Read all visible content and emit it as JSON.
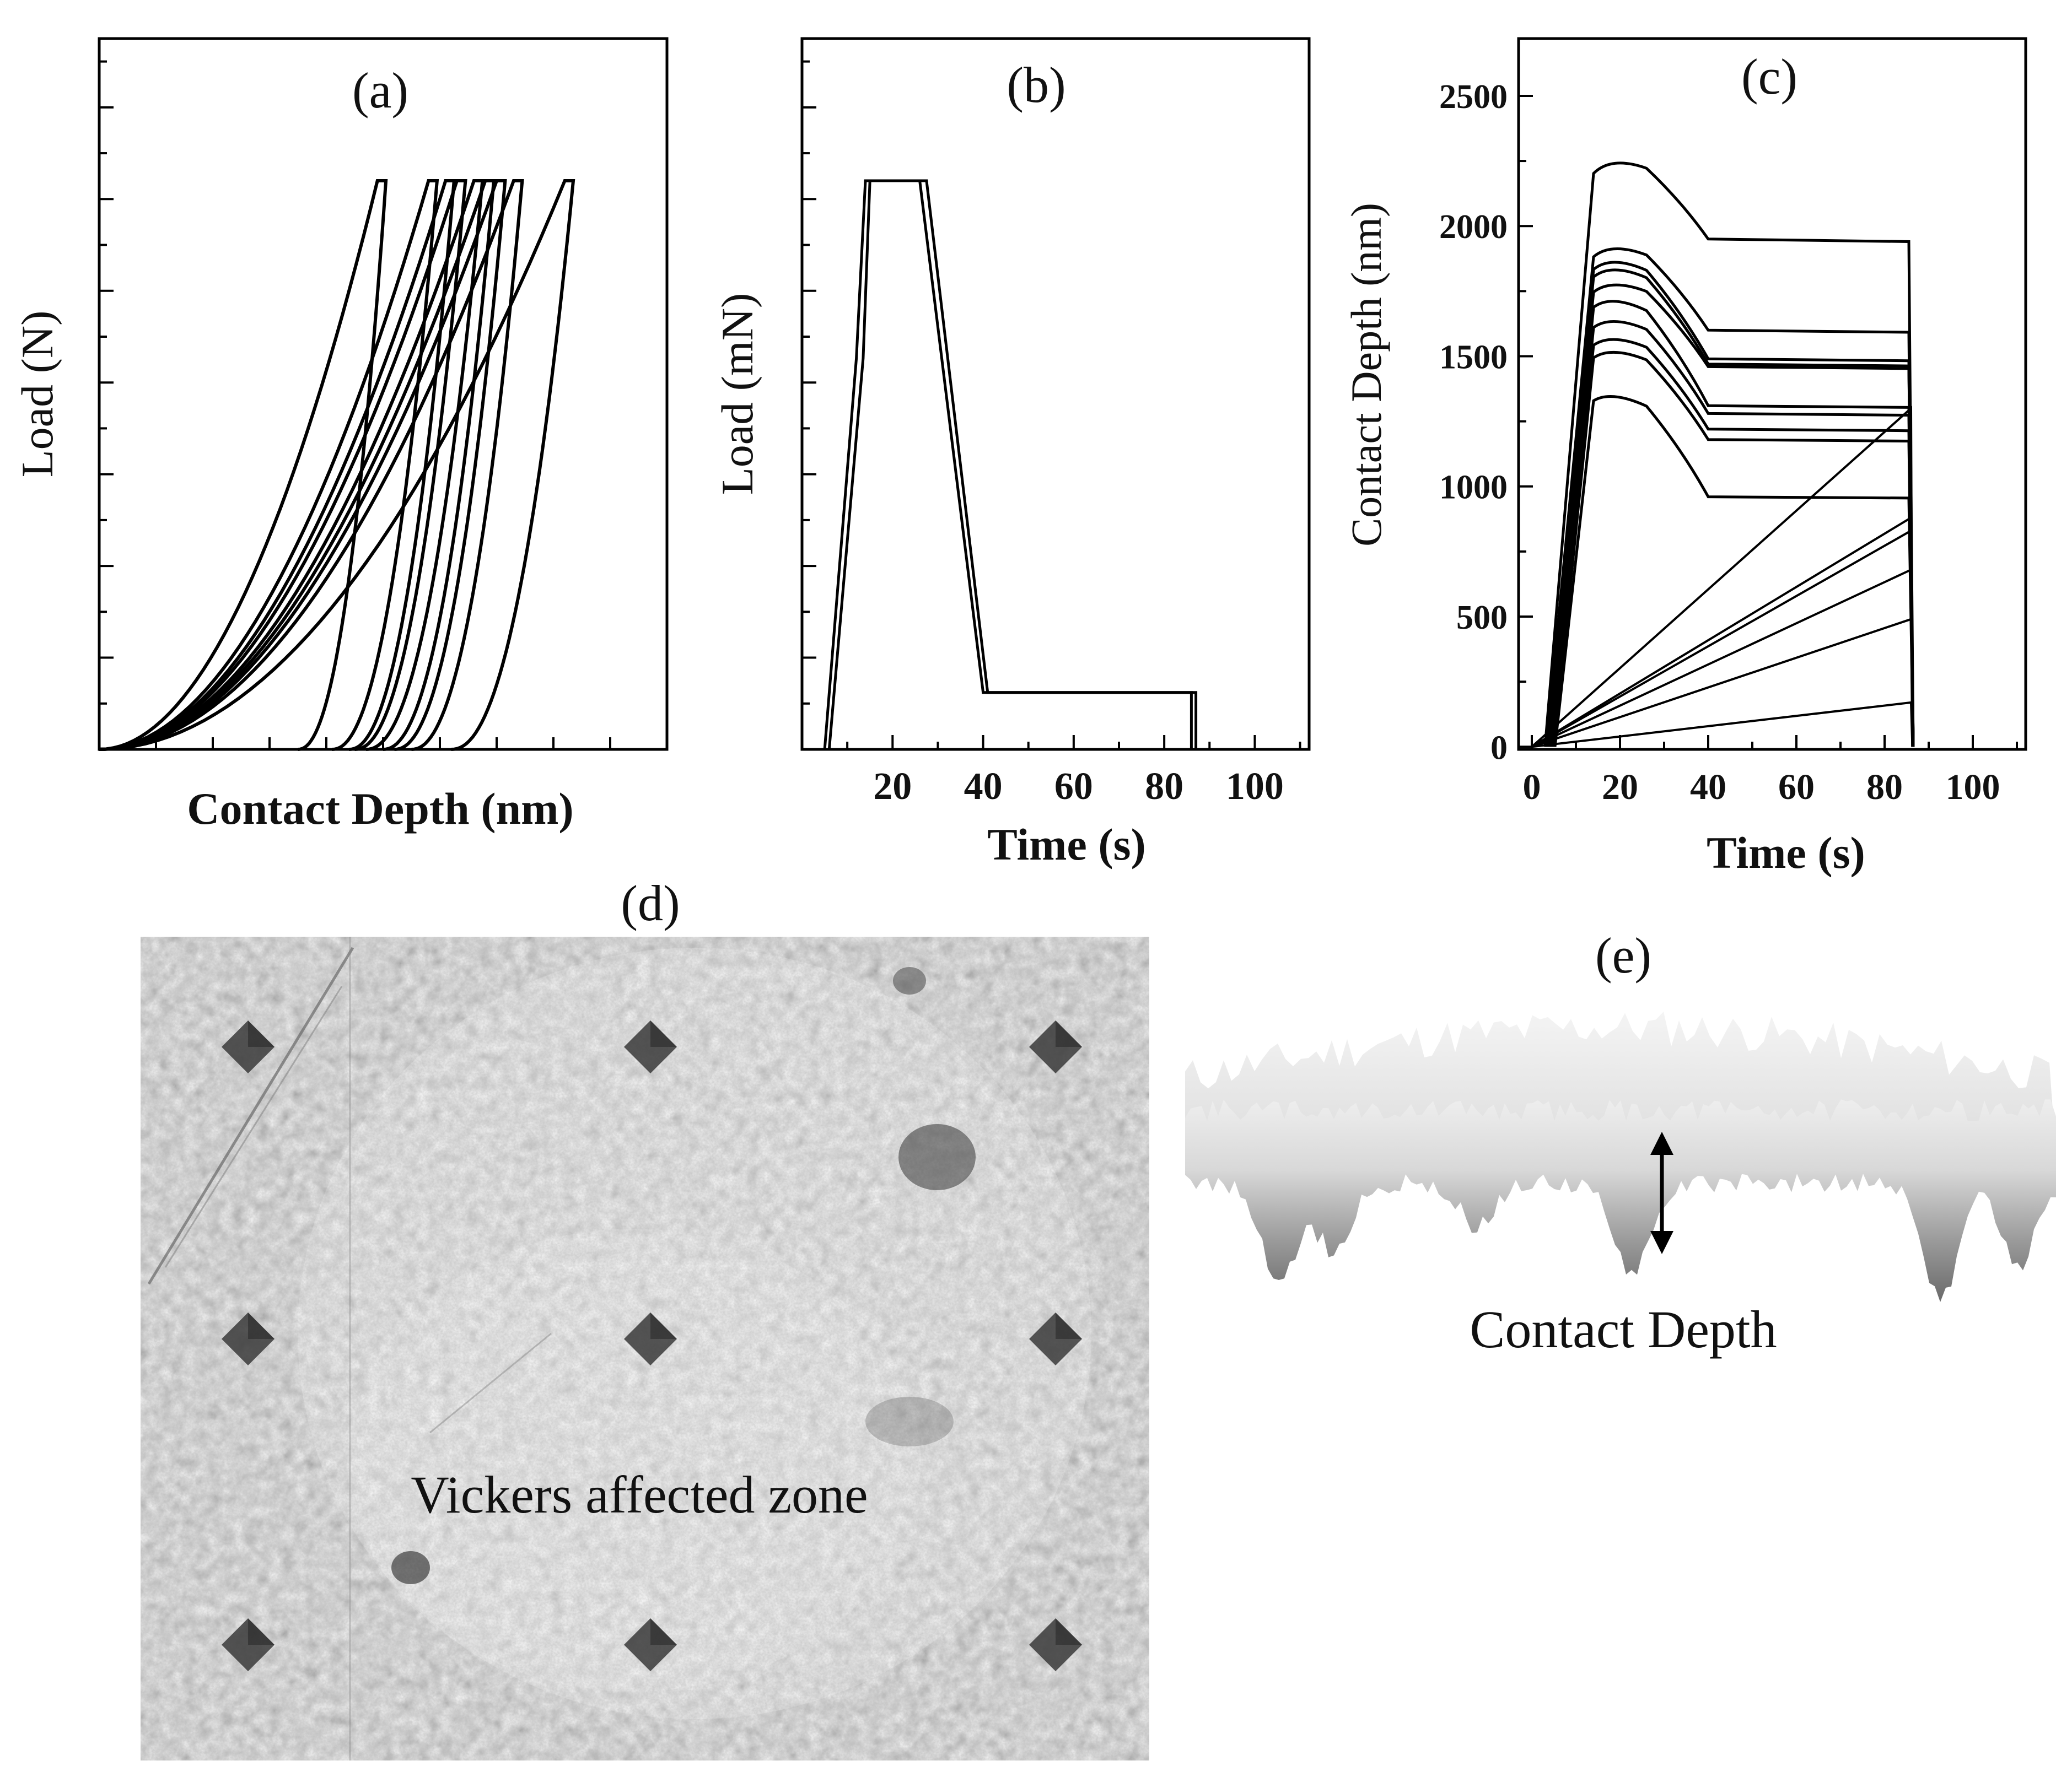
{
  "chart_data": [
    {
      "id": "a",
      "type": "line",
      "panel_label": "(a)",
      "xlabel": "Contact Depth (nm)",
      "ylabel": "Load (N)",
      "x_tick_labels": [],
      "y_tick_labels": [],
      "xlim": [
        0,
        1
      ],
      "ylim": [
        0,
        1
      ],
      "plateau_load": 0.8,
      "curves": [
        {
          "peak_depth": 0.49,
          "residual_depth": 0.35
        },
        {
          "peak_depth": 0.58,
          "residual_depth": 0.41
        },
        {
          "peak_depth": 0.61,
          "residual_depth": 0.44
        },
        {
          "peak_depth": 0.63,
          "residual_depth": 0.45
        },
        {
          "peak_depth": 0.66,
          "residual_depth": 0.47
        },
        {
          "peak_depth": 0.68,
          "residual_depth": 0.5
        },
        {
          "peak_depth": 0.7,
          "residual_depth": 0.52
        },
        {
          "peak_depth": 0.73,
          "residual_depth": 0.55
        },
        {
          "peak_depth": 0.82,
          "residual_depth": 0.62
        }
      ]
    },
    {
      "id": "b",
      "type": "line",
      "panel_label": "(b)",
      "xlabel": "Time (s)",
      "ylabel": "Load (mN)",
      "x_tick_labels": [
        "20",
        "40",
        "60",
        "80",
        "100"
      ],
      "y_tick_labels": [],
      "xlim": [
        0,
        112
      ],
      "ylim": [
        0,
        1
      ],
      "series": [
        {
          "x": [
            5,
            12,
            14,
            26,
            40,
            85,
            86,
            86
          ],
          "y": [
            0,
            0.55,
            0.8,
            0.8,
            0.08,
            0.08,
            0.08,
            0
          ]
        },
        {
          "x": [
            6,
            13.5,
            15,
            27.5,
            41,
            86,
            87,
            87
          ],
          "y": [
            0,
            0.55,
            0.8,
            0.8,
            0.08,
            0.08,
            0.08,
            0
          ]
        }
      ]
    },
    {
      "id": "c",
      "type": "line",
      "panel_label": "(c)",
      "xlabel": "Time (s)",
      "ylabel": "Contact Depth (nm)",
      "x_tick_labels": [
        "0",
        "20",
        "40",
        "60",
        "80",
        "100"
      ],
      "y_tick_labels": [
        "0",
        "500",
        "1000",
        "1500",
        "2000",
        "2500"
      ],
      "xlim": [
        -3,
        112
      ],
      "ylim": [
        -10,
        2500
      ],
      "xticks": [
        0,
        20,
        40,
        60,
        80,
        100
      ],
      "yticks": [
        0,
        500,
        1000,
        1500,
        2000,
        2500
      ],
      "hold_curves": [
        {
          "peak": 2270,
          "plateau": 1950
        },
        {
          "peak": 1940,
          "plateau": 1600
        },
        {
          "peak": 1890,
          "plateau": 1490
        },
        {
          "peak": 1860,
          "plateau": 1470
        },
        {
          "peak": 1800,
          "plateau": 1460
        },
        {
          "peak": 1740,
          "plateau": 1310
        },
        {
          "peak": 1660,
          "plateau": 1280
        },
        {
          "peak": 1590,
          "plateau": 1220
        },
        {
          "peak": 1540,
          "plateau": 1180
        },
        {
          "peak": 1370,
          "plateau": 960
        }
      ],
      "ramp_curves": [
        {
          "end_t": 86,
          "end_value": 1300
        },
        {
          "end_t": 86,
          "end_value": 880
        },
        {
          "end_t": 86,
          "end_value": 830
        },
        {
          "end_t": 86,
          "end_value": 680
        },
        {
          "end_t": 86,
          "end_value": 490
        },
        {
          "end_t": 86,
          "end_value": 170
        }
      ]
    }
  ],
  "panel_d": {
    "label": "(d)",
    "annotation": "Vickers affected zone",
    "indent_rows": 3,
    "indent_cols": 3
  },
  "panel_e": {
    "label": "(e)",
    "annotation": "Contact Depth"
  }
}
